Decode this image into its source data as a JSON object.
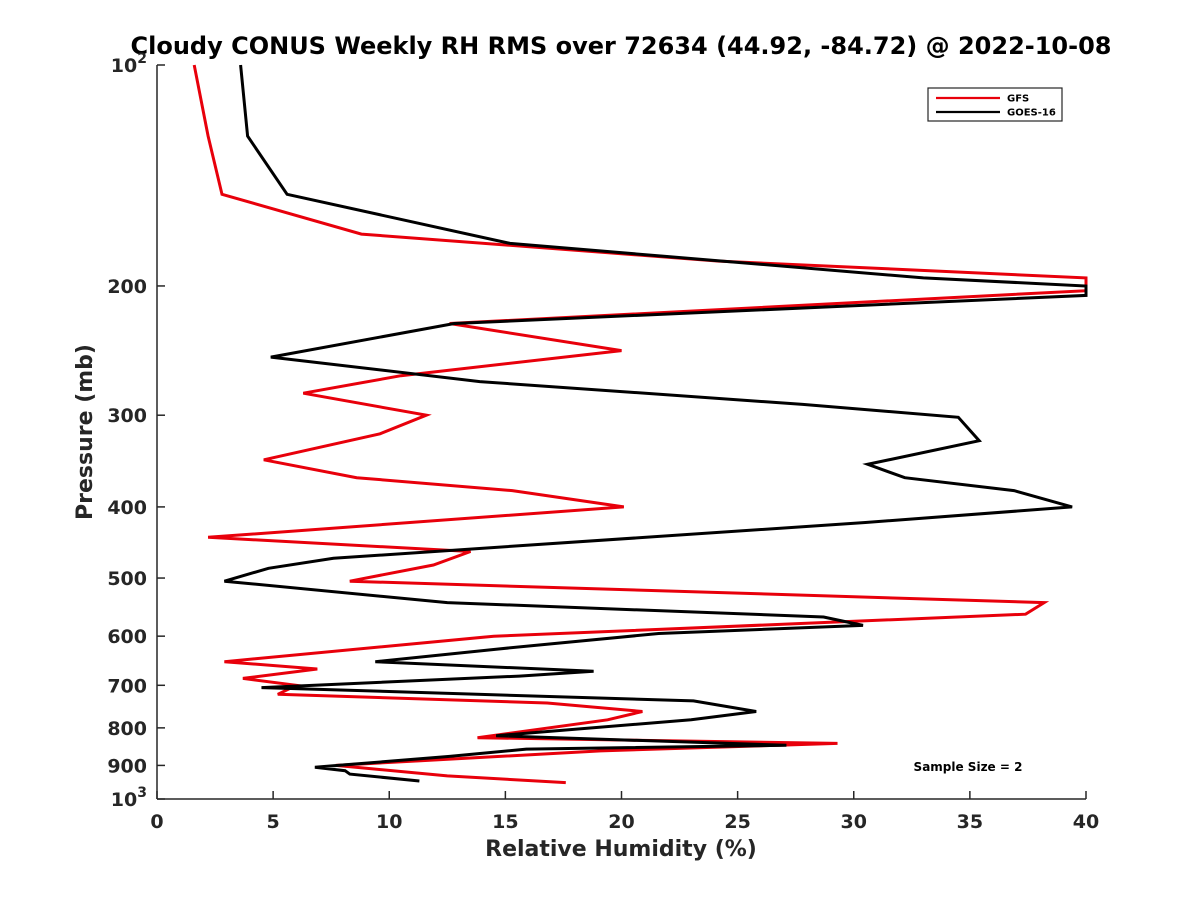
{
  "chart_data": {
    "type": "line",
    "title": "Cloudy CONUS Weekly RH RMS over 72634 (44.92, -84.72) @ 2022-10-08",
    "xlabel": "Relative Humidity (%)",
    "ylabel": "Pressure (mb)",
    "xlim": [
      0,
      40
    ],
    "ylim": [
      100,
      1000
    ],
    "y_scale": "log",
    "y_reversed": true,
    "grid": false,
    "legend_position": "top-right",
    "x_ticks": [
      {
        "value": 0,
        "label": "0"
      },
      {
        "value": 5,
        "label": "5"
      },
      {
        "value": 10,
        "label": "10"
      },
      {
        "value": 15,
        "label": "15"
      },
      {
        "value": 20,
        "label": "20"
      },
      {
        "value": 25,
        "label": "25"
      },
      {
        "value": 30,
        "label": "30"
      },
      {
        "value": 35,
        "label": "35"
      },
      {
        "value": 40,
        "label": "40"
      }
    ],
    "y_ticks": [
      {
        "value": 100,
        "label": "10",
        "sup": "2"
      },
      {
        "value": 200,
        "label": "200"
      },
      {
        "value": 300,
        "label": "300"
      },
      {
        "value": 400,
        "label": "400"
      },
      {
        "value": 500,
        "label": "500"
      },
      {
        "value": 600,
        "label": "600"
      },
      {
        "value": 700,
        "label": "700"
      },
      {
        "value": 800,
        "label": "800"
      },
      {
        "value": 900,
        "label": "900"
      },
      {
        "value": 1000,
        "label": "10",
        "sup": "3"
      }
    ],
    "series": [
      {
        "name": "GFS",
        "color": "#e8000b",
        "points": [
          [
            1.6,
            100
          ],
          [
            2.2,
            125
          ],
          [
            2.8,
            150
          ],
          [
            8.8,
            170
          ],
          [
            24.2,
            185
          ],
          [
            40.0,
            195
          ],
          [
            40.0,
            203
          ],
          [
            12.6,
            225
          ],
          [
            20.0,
            245
          ],
          [
            10.5,
            265
          ],
          [
            6.3,
            280
          ],
          [
            11.6,
            300
          ],
          [
            9.6,
            318
          ],
          [
            4.6,
            345
          ],
          [
            8.6,
            365
          ],
          [
            15.3,
            380
          ],
          [
            20.1,
            400
          ],
          [
            2.2,
            440
          ],
          [
            13.5,
            460
          ],
          [
            11.9,
            480
          ],
          [
            8.3,
            505
          ],
          [
            38.2,
            540
          ],
          [
            37.4,
            560
          ],
          [
            14.5,
            600
          ],
          [
            2.9,
            650
          ],
          [
            6.9,
            665
          ],
          [
            3.7,
            685
          ],
          [
            6.0,
            700
          ],
          [
            5.2,
            720
          ],
          [
            16.8,
            740
          ],
          [
            20.9,
            760
          ],
          [
            19.4,
            780
          ],
          [
            13.8,
            825
          ],
          [
            29.3,
            840
          ],
          [
            19.1,
            860
          ],
          [
            7.7,
            900
          ],
          [
            12.5,
            930
          ],
          [
            17.6,
            950
          ]
        ]
      },
      {
        "name": "GOES-16",
        "color": "#000000",
        "points": [
          [
            3.6,
            100
          ],
          [
            3.9,
            125
          ],
          [
            5.6,
            150
          ],
          [
            15.2,
            175
          ],
          [
            33.0,
            195
          ],
          [
            40.0,
            200
          ],
          [
            40.0,
            206
          ],
          [
            12.8,
            225
          ],
          [
            4.9,
            250
          ],
          [
            13.9,
            270
          ],
          [
            27.8,
            290
          ],
          [
            34.5,
            302
          ],
          [
            35.4,
            325
          ],
          [
            30.6,
            350
          ],
          [
            32.2,
            365
          ],
          [
            36.9,
            380
          ],
          [
            39.4,
            400
          ],
          [
            30.5,
            420
          ],
          [
            7.6,
            470
          ],
          [
            4.8,
            485
          ],
          [
            2.9,
            505
          ],
          [
            12.5,
            540
          ],
          [
            28.7,
            565
          ],
          [
            30.4,
            580
          ],
          [
            21.6,
            595
          ],
          [
            16.9,
            615
          ],
          [
            14.6,
            625
          ],
          [
            9.4,
            650
          ],
          [
            18.8,
            670
          ],
          [
            15.6,
            680
          ],
          [
            4.5,
            705
          ],
          [
            23.1,
            735
          ],
          [
            25.8,
            760
          ],
          [
            23.0,
            780
          ],
          [
            14.6,
            820
          ],
          [
            27.1,
            845
          ],
          [
            15.9,
            855
          ],
          [
            12.6,
            875
          ],
          [
            6.8,
            905
          ],
          [
            8.1,
            915
          ],
          [
            8.3,
            925
          ],
          [
            11.3,
            945
          ]
        ]
      }
    ],
    "annotation": "Sample Size = 2"
  }
}
